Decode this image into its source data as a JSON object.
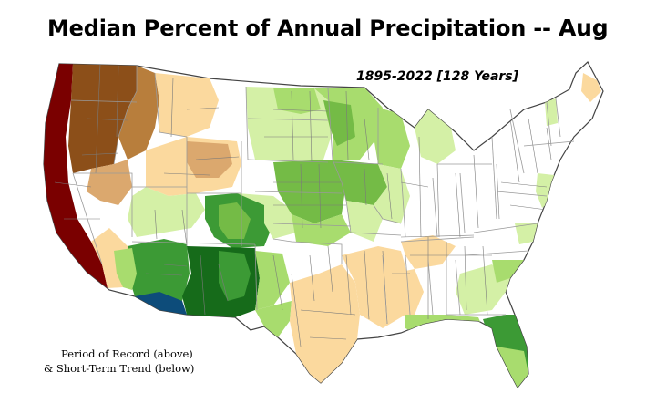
{
  "title": {
    "main": "Median Percent of Annual Precipitation --",
    "month": "Aug"
  },
  "period": "1895-2022 [128 Years]",
  "note": {
    "line1": "Period of Record (above)",
    "line2": "& Short-Term Trend (below)"
  },
  "colors": {
    "very_dry": "#7a0000",
    "dry": "#8c4f19",
    "mod_dry": "#b87e3c",
    "slight_dry": "#dba86e",
    "light_dry": "#fbd99e",
    "near_normal": "#ffffff",
    "light_wet": "#d4f0a6",
    "slight_wet": "#a8dc6e",
    "mod_wet": "#74bb46",
    "wet": "#3c9a35",
    "very_wet": "#166b1a",
    "extreme_wet": "#0d4c7a"
  }
}
